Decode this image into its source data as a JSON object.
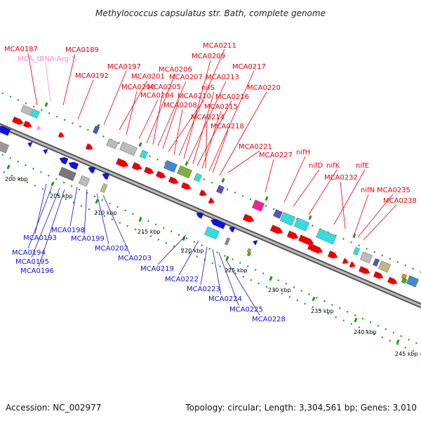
{
  "title": "Methylococcus capsulatus str. Bath, complete genome",
  "footer": {
    "accession": "Accession: NC_002977",
    "topology": "Topology: circular; Length: 3,304,561 bp; Genes: 3,010"
  },
  "colors": {
    "forward_label": "#e8000b",
    "reverse_label": "#1212dd",
    "rna_label": "#ff88c8",
    "backbone": "#888888",
    "tick": "#1f9a1f"
  },
  "ticks": [
    "200 kbp",
    "205 kbp",
    "210 kbp",
    "215 kbp",
    "220 kbp",
    "225 kbp",
    "230 kbp",
    "235 kbp",
    "240 kbp",
    "245 kbp"
  ],
  "forward_labels": [
    "MCA0187",
    "MCA_tRNA-Arg-1",
    "MCA0189",
    "MCA0192",
    "MCA0197",
    "MCA0201",
    "MCA0200",
    "MCA0206",
    "MCA0205",
    "MCA0207",
    "MCA0204",
    "MCA0210",
    "MCA0208",
    "MCA0211",
    "MCA0209",
    "MCA0213",
    "nifS",
    "MCA0216",
    "MCA0215",
    "MCA0214",
    "MCA0217",
    "MCA0218",
    "MCA0220",
    "MCA0221",
    "MCA0227",
    "nifH",
    "nifD",
    "nifK",
    "nifE",
    "MCA0232",
    "nifN",
    "MCA0235",
    "MCA0238"
  ],
  "reverse_labels": [
    "MCA0193",
    "MCA0194",
    "MCA0195",
    "MCA0196",
    "MCA0198",
    "MCA0199",
    "MCA0202",
    "MCA0203",
    "MCA0219",
    "MCA0222",
    "MCA0223",
    "MCA0224",
    "MCA0225",
    "MCA0228"
  ]
}
